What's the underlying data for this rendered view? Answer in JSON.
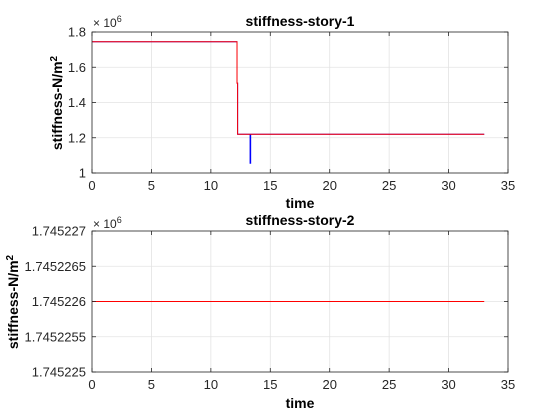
{
  "chart_data": [
    {
      "type": "line",
      "title": "stiffness-story-1",
      "xlabel": "time",
      "ylabel": "stiffness-N/m",
      "ylabel_superscript": "2",
      "exponent_label": "× 10",
      "exponent": "6",
      "xlim": [
        0,
        35
      ],
      "ylim": [
        1.0,
        1.8
      ],
      "xticks": [
        0,
        5,
        10,
        15,
        20,
        25,
        30,
        35
      ],
      "yticks": [
        1,
        1.2,
        1.4,
        1.6,
        1.8
      ],
      "ytick_labels": [
        "1",
        "1.2",
        "1.4",
        "1.6",
        "1.8"
      ],
      "grid": true,
      "series": [
        {
          "color": "#0000ff",
          "x": [
            0,
            12.2,
            12.2,
            12.25,
            12.25,
            13.3,
            13.3,
            13.35,
            13.35,
            33.0
          ],
          "y": [
            1.745,
            1.745,
            1.51,
            1.51,
            1.22,
            1.22,
            1.055,
            1.055,
            1.22,
            1.22
          ]
        },
        {
          "color": "#ff0000",
          "x": [
            0,
            12.2,
            12.2,
            12.25,
            12.25,
            33.0
          ],
          "y": [
            1.745,
            1.745,
            1.51,
            1.51,
            1.22,
            1.22
          ]
        }
      ]
    },
    {
      "type": "line",
      "title": "stiffness-story-2",
      "xlabel": "time",
      "ylabel": "stiffness-N/m",
      "ylabel_superscript": "2",
      "exponent_label": "× 10",
      "exponent": "6",
      "xlim": [
        0,
        35
      ],
      "ylim": [
        1.745225,
        1.745227
      ],
      "xticks": [
        0,
        5,
        10,
        15,
        20,
        25,
        30,
        35
      ],
      "yticks": [
        1.745225,
        1.7452255,
        1.745226,
        1.7452265,
        1.745227
      ],
      "ytick_labels": [
        "1.745225",
        "1.7452255",
        "1.745226",
        "1.7452265",
        "1.745227"
      ],
      "grid": true,
      "series": [
        {
          "color": "#ff0000",
          "x": [
            0,
            33.0
          ],
          "y": [
            1.745226,
            1.745226
          ]
        }
      ]
    }
  ]
}
